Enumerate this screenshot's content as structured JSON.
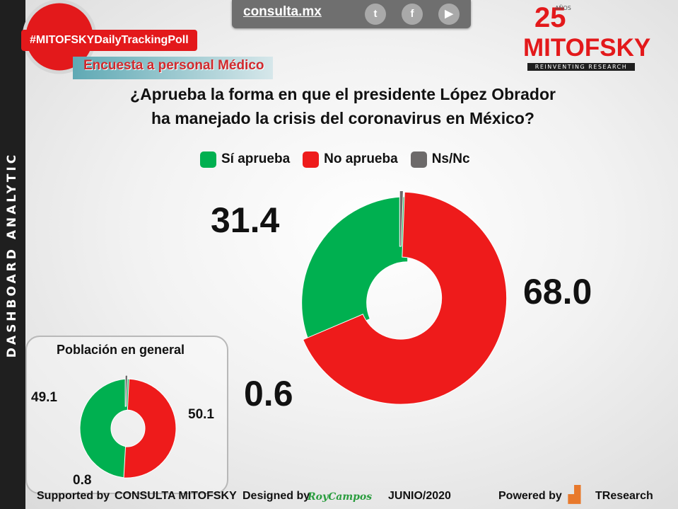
{
  "header": {
    "site": "consulta.mx",
    "social": [
      "twitter-icon",
      "facebook-icon",
      "youtube-icon"
    ],
    "hashtag": "#MITOFSKYDailyTrackingPoll",
    "survey_tag": "Encuesta a personal Médico",
    "logo": {
      "years": "25",
      "anos": "AÑOS",
      "name": "MITOFSKY",
      "tagline": "REINVENTING RESEARCH"
    }
  },
  "side_label": "DASHBOARD ANALYTIC",
  "question": {
    "line1": "¿Aprueba la forma en que el presidente López Obrador",
    "line2": "ha manejado la crisis del coronavirus en México?"
  },
  "colors": {
    "aprueba": "#00b050",
    "no_aprueba": "#ee1b1b",
    "ns_nc": "#6d6a6a",
    "brand_red": "#e3191b"
  },
  "chart_data": [
    {
      "type": "pie",
      "variant": "donut",
      "categories": [
        "Sí aprueba",
        "No aprueba",
        "Ns/Nc"
      ],
      "values": [
        31.4,
        68.0,
        0.6
      ],
      "value_labels": [
        "31.4",
        "68.0",
        "0.6"
      ],
      "legend": "top"
    },
    {
      "type": "pie",
      "variant": "donut",
      "title": "Población en general",
      "categories": [
        "Sí aprueba",
        "No aprueba",
        "Ns/Nc"
      ],
      "values": [
        49.1,
        50.1,
        0.8
      ],
      "value_labels": [
        "49.1",
        "50.1",
        "0.8"
      ]
    }
  ],
  "footer": {
    "supported_by": "Supported by",
    "sponsor": "CONSULTA  MITOFSKY",
    "designed_by": "Designed by",
    "designer": "RoyCampos",
    "date": "JUNIO/2020",
    "powered_by": "Powered by",
    "powered_brand": "TResearch"
  }
}
